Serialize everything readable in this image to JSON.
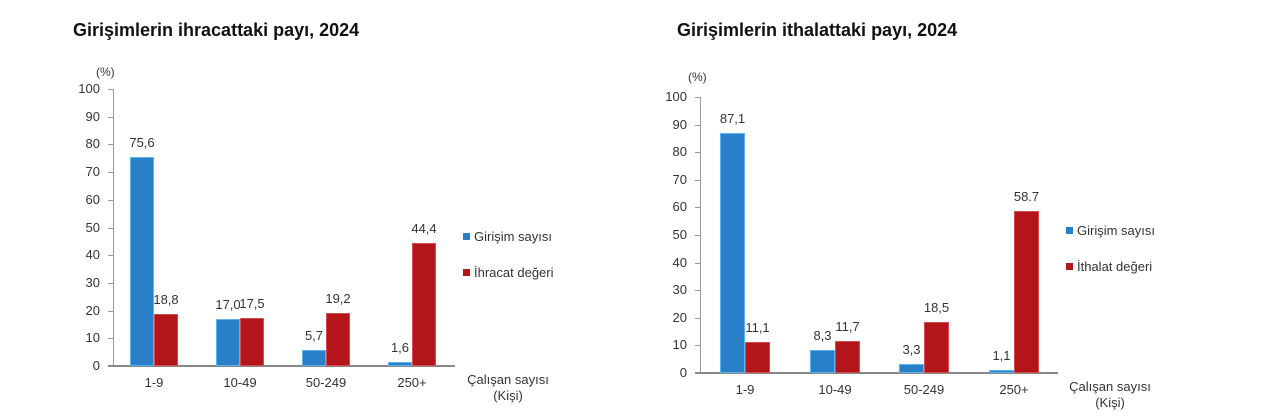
{
  "colors": {
    "girisim": "#2a7fc9",
    "deger": "#b3151b"
  },
  "charts": [
    {
      "title": "Girişimlerin ihracattaki payı, 2024",
      "unit": "(%)",
      "yticks": [
        "0",
        "10",
        "20",
        "30",
        "40",
        "50",
        "60",
        "70",
        "80",
        "90",
        "100"
      ],
      "categories": [
        "1-9",
        "10-49",
        "50-249",
        "250+"
      ],
      "x_axis_title_line1": "Çalışan sayısı",
      "x_axis_title_line2": "(Kişi)",
      "legend": [
        "Girişim sayısı",
        "İhracat değeri"
      ],
      "labels": {
        "girisim": [
          "75,6",
          "17,0",
          "5,7",
          "1,6"
        ],
        "deger": [
          "18,8",
          "17,5",
          "19,2",
          "44,4"
        ]
      }
    },
    {
      "title": "Girişimlerin ithalattaki payı, 2024",
      "unit": "(%)",
      "yticks": [
        "0",
        "10",
        "20",
        "30",
        "40",
        "50",
        "60",
        "70",
        "80",
        "90",
        "100"
      ],
      "categories": [
        "1-9",
        "10-49",
        "50-249",
        "250+"
      ],
      "x_axis_title_line1": "Çalışan sayısı",
      "x_axis_title_line2": "(Kişi)",
      "legend": [
        "Girişim sayısı",
        "İthalat değeri"
      ],
      "labels": {
        "girisim": [
          "87,1",
          "8,3",
          "3,3",
          "1,1"
        ],
        "deger": [
          "11,1",
          "11,7",
          "18,5",
          "58.7"
        ]
      }
    }
  ],
  "chart_data": [
    {
      "type": "bar",
      "title": "Girişimlerin ihracattaki payı, 2024",
      "categories": [
        "1-9",
        "10-49",
        "50-249",
        "250+"
      ],
      "series": [
        {
          "name": "Girişim sayısı",
          "values": [
            75.6,
            17.0,
            5.7,
            1.6
          ]
        },
        {
          "name": "İhracat değeri",
          "values": [
            18.8,
            17.5,
            19.2,
            44.4
          ]
        }
      ],
      "xlabel": "Çalışan sayısı (Kişi)",
      "ylabel": "(%)",
      "ylim": [
        0,
        100
      ],
      "yticks": [
        0,
        10,
        20,
        30,
        40,
        50,
        60,
        70,
        80,
        90,
        100
      ],
      "grid": false,
      "legend_position": "right"
    },
    {
      "type": "bar",
      "title": "Girişimlerin ithalattaki payı, 2024",
      "categories": [
        "1-9",
        "10-49",
        "50-249",
        "250+"
      ],
      "series": [
        {
          "name": "Girişim sayısı",
          "values": [
            87.1,
            8.3,
            3.3,
            1.1
          ]
        },
        {
          "name": "İthalat değeri",
          "values": [
            11.1,
            11.7,
            18.5,
            58.7
          ]
        }
      ],
      "xlabel": "Çalışan sayısı (Kişi)",
      "ylabel": "(%)",
      "ylim": [
        0,
        100
      ],
      "yticks": [
        0,
        10,
        20,
        30,
        40,
        50,
        60,
        70,
        80,
        90,
        100
      ],
      "grid": false,
      "legend_position": "right"
    }
  ]
}
